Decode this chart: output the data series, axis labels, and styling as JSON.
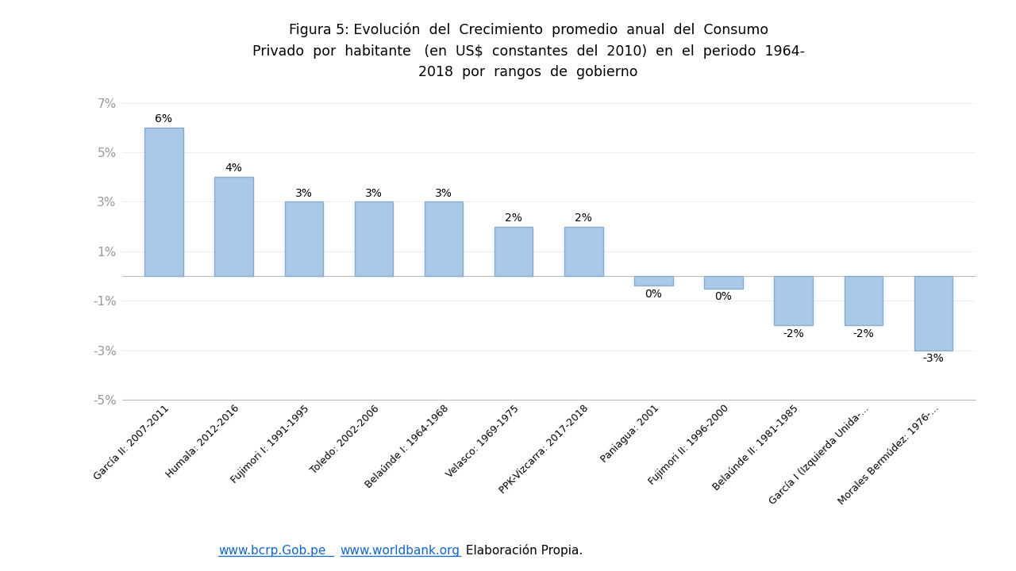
{
  "categories": [
    "García II: 2007-2011",
    "Humala: 2012-2016",
    "Fujimori I: 1991-1995",
    "Toledo: 2002-2006",
    "Belaúnde I: 1964-1968",
    "Velasco: 1969-1975",
    "PPK-Vizcarra: 2017-2018",
    "Paniagua: 2001",
    "Fujimori II: 1996-2000",
    "Belaúnde II: 1981-1985",
    "García I (Izquierda Unida-...",
    "Morales Bermúdez: 1976-..."
  ],
  "values": [
    6,
    4,
    3,
    3,
    3,
    2,
    2,
    -0.4,
    -0.5,
    -2,
    -2,
    -3
  ],
  "value_labels": [
    "6%",
    "4%",
    "3%",
    "3%",
    "3%",
    "2%",
    "2%",
    "0%",
    "0%",
    "-2%",
    "-2%",
    "-3%"
  ],
  "bar_color": "#aac8e8",
  "bar_edge_color": "#88aace",
  "title_line1": "Figura 5: Evolución  del  Crecimiento  promedio  anual  del  Consumo",
  "title_line2": "Privado  por  habitante   (en  US$  constantes  del  2010)  en  el  periodo  1964-",
  "title_line3": "2018  por  rangos  de  gobierno",
  "ylim_min": -5,
  "ylim_max": 7,
  "yticks": [
    -5,
    -3,
    -1,
    1,
    3,
    5,
    7
  ],
  "ytick_labels": [
    "-5%",
    "-3%",
    "-1%",
    "1%",
    "3%",
    "5%",
    "7%"
  ],
  "footer_link1": "www.bcrp.Gob.pe",
  "footer_link2": "www.worldbank.org",
  "footer_rest": " Elaboración Propia.",
  "background_color": "#ffffff"
}
